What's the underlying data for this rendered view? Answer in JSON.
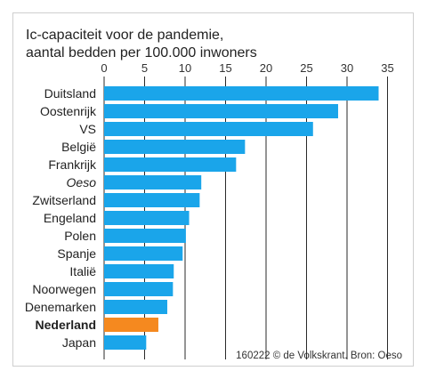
{
  "chart_data": {
    "type": "bar",
    "orientation": "horizontal",
    "title_lines": [
      "Ic-capaciteit voor de pandemie,",
      "aantal bedden per 100.000 inwoners"
    ],
    "categories": [
      "Duitsland",
      "Oostenrijk",
      "VS",
      "België",
      "Frankrijk",
      "Oeso",
      "Zwitserland",
      "Engeland",
      "Polen",
      "Spanje",
      "Italië",
      "Noorwegen",
      "Denemarken",
      "Nederland",
      "Japan"
    ],
    "values": [
      33.9,
      28.9,
      25.8,
      17.4,
      16.3,
      12.0,
      11.8,
      10.5,
      10.1,
      9.7,
      8.6,
      8.5,
      7.8,
      6.7,
      5.2
    ],
    "highlight": [
      "Nederland"
    ],
    "italic_categories": [
      "Oeso"
    ],
    "xlim": [
      0,
      35
    ],
    "xticks": [
      0,
      5,
      10,
      15,
      20,
      25,
      30,
      35
    ],
    "xaxis_position": "top",
    "grid": "vertical",
    "colors": {
      "bar": "#1aa5ea",
      "highlight": "#f5891f",
      "grid": "#2a2a2a"
    },
    "source": "160222 © de Volkskrant. Bron: Oeso"
  }
}
